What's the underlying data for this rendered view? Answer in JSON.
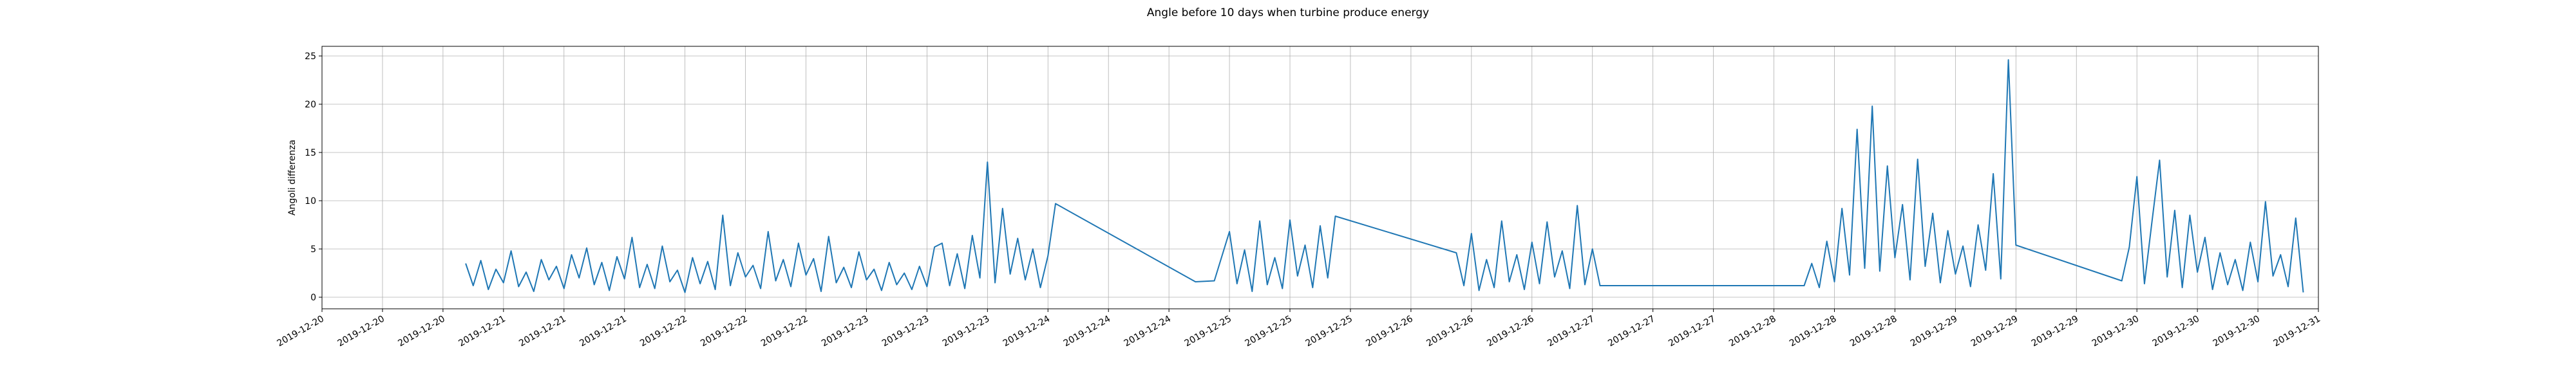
{
  "chart_data": {
    "type": "line",
    "title": "Angle before 10 days when turbine produce energy",
    "xlabel": "",
    "ylabel": "Angoli differenza",
    "x_tick_labels": [
      "2019-12-20",
      "2019-12-20",
      "2019-12-20",
      "2019-12-21",
      "2019-12-21",
      "2019-12-21",
      "2019-12-22",
      "2019-12-22",
      "2019-12-22",
      "2019-12-23",
      "2019-12-23",
      "2019-12-23",
      "2019-12-24",
      "2019-12-24",
      "2019-12-24",
      "2019-12-25",
      "2019-12-25",
      "2019-12-25",
      "2019-12-26",
      "2019-12-26",
      "2019-12-26",
      "2019-12-27",
      "2019-12-27",
      "2019-12-27",
      "2019-12-28",
      "2019-12-28",
      "2019-12-28",
      "2019-12-29",
      "2019-12-29",
      "2019-12-29",
      "2019-12-30",
      "2019-12-30",
      "2019-12-30",
      "2019-12-31"
    ],
    "xlim": [
      "2019-12-20T00:00",
      "2019-12-31T00:00"
    ],
    "y_ticks": [
      0,
      5,
      10,
      15,
      20,
      25
    ],
    "ylim": [
      -1.2,
      26.0
    ],
    "grid": true,
    "line_color": "#1f77b4",
    "series": [
      {
        "points": [
          [
            "2019-12-20T19:00",
            3.5
          ],
          [
            "2019-12-20T20:00",
            1.2
          ],
          [
            "2019-12-20T21:00",
            3.8
          ],
          [
            "2019-12-20T22:00",
            0.8
          ],
          [
            "2019-12-20T23:00",
            2.9
          ],
          [
            "2019-12-21T00:00",
            1.5
          ],
          [
            "2019-12-21T01:00",
            4.8
          ],
          [
            "2019-12-21T02:00",
            1.1
          ],
          [
            "2019-12-21T03:00",
            2.6
          ],
          [
            "2019-12-21T04:00",
            0.6
          ],
          [
            "2019-12-21T05:00",
            3.9
          ],
          [
            "2019-12-21T06:00",
            1.8
          ],
          [
            "2019-12-21T07:00",
            3.2
          ],
          [
            "2019-12-21T08:00",
            0.9
          ],
          [
            "2019-12-21T09:00",
            4.4
          ],
          [
            "2019-12-21T10:00",
            2.0
          ],
          [
            "2019-12-21T11:00",
            5.1
          ],
          [
            "2019-12-21T12:00",
            1.3
          ],
          [
            "2019-12-21T13:00",
            3.6
          ],
          [
            "2019-12-21T14:00",
            0.7
          ],
          [
            "2019-12-21T15:00",
            4.2
          ],
          [
            "2019-12-21T16:00",
            1.9
          ],
          [
            "2019-12-21T17:00",
            6.2
          ],
          [
            "2019-12-21T18:00",
            1.0
          ],
          [
            "2019-12-21T19:00",
            3.4
          ],
          [
            "2019-12-21T20:00",
            0.9
          ],
          [
            "2019-12-21T21:00",
            5.3
          ],
          [
            "2019-12-21T22:00",
            1.6
          ],
          [
            "2019-12-21T23:00",
            2.8
          ],
          [
            "2019-12-22T00:00",
            0.5
          ],
          [
            "2019-12-22T01:00",
            4.1
          ],
          [
            "2019-12-22T02:00",
            1.4
          ],
          [
            "2019-12-22T03:00",
            3.7
          ],
          [
            "2019-12-22T04:00",
            0.8
          ],
          [
            "2019-12-22T05:00",
            8.5
          ],
          [
            "2019-12-22T06:00",
            1.2
          ],
          [
            "2019-12-22T07:00",
            4.6
          ],
          [
            "2019-12-22T08:00",
            2.1
          ],
          [
            "2019-12-22T09:00",
            3.3
          ],
          [
            "2019-12-22T10:00",
            0.9
          ],
          [
            "2019-12-22T11:00",
            6.8
          ],
          [
            "2019-12-22T12:00",
            1.7
          ],
          [
            "2019-12-22T13:00",
            3.9
          ],
          [
            "2019-12-22T14:00",
            1.1
          ],
          [
            "2019-12-22T15:00",
            5.6
          ],
          [
            "2019-12-22T16:00",
            2.3
          ],
          [
            "2019-12-22T17:00",
            4.0
          ],
          [
            "2019-12-22T18:00",
            0.6
          ],
          [
            "2019-12-22T19:00",
            6.3
          ],
          [
            "2019-12-22T20:00",
            1.5
          ],
          [
            "2019-12-22T21:00",
            3.1
          ],
          [
            "2019-12-22T22:00",
            1.0
          ],
          [
            "2019-12-22T23:00",
            4.7
          ],
          [
            "2019-12-23T00:00",
            1.8
          ],
          [
            "2019-12-23T01:00",
            2.9
          ],
          [
            "2019-12-23T02:00",
            0.7
          ],
          [
            "2019-12-23T03:00",
            3.6
          ],
          [
            "2019-12-23T04:00",
            1.3
          ],
          [
            "2019-12-23T05:00",
            2.5
          ],
          [
            "2019-12-23T06:00",
            0.8
          ],
          [
            "2019-12-23T07:00",
            3.2
          ],
          [
            "2019-12-23T08:00",
            1.1
          ],
          [
            "2019-12-23T09:00",
            5.2
          ],
          [
            "2019-12-23T10:00",
            5.6
          ],
          [
            "2019-12-23T11:00",
            1.2
          ],
          [
            "2019-12-23T12:00",
            4.5
          ],
          [
            "2019-12-23T13:00",
            0.9
          ],
          [
            "2019-12-23T14:00",
            6.4
          ],
          [
            "2019-12-23T15:00",
            2.0
          ],
          [
            "2019-12-23T16:00",
            14.0
          ],
          [
            "2019-12-23T17:00",
            1.5
          ],
          [
            "2019-12-23T18:00",
            9.2
          ],
          [
            "2019-12-23T19:00",
            2.4
          ],
          [
            "2019-12-23T20:00",
            6.1
          ],
          [
            "2019-12-23T21:00",
            1.8
          ],
          [
            "2019-12-23T22:00",
            5.0
          ],
          [
            "2019-12-23T23:00",
            1.0
          ],
          [
            "2019-12-24T00:00",
            4.3
          ],
          [
            "2019-12-24T01:00",
            9.7
          ],
          [
            "2019-12-24T19:30",
            1.6
          ],
          [
            "2019-12-24T22:00",
            1.7
          ],
          [
            "2019-12-25T00:00",
            6.8
          ],
          [
            "2019-12-25T01:00",
            1.4
          ],
          [
            "2019-12-25T02:00",
            4.9
          ],
          [
            "2019-12-25T03:00",
            0.6
          ],
          [
            "2019-12-25T04:00",
            7.9
          ],
          [
            "2019-12-25T05:00",
            1.3
          ],
          [
            "2019-12-25T06:00",
            4.1
          ],
          [
            "2019-12-25T07:00",
            0.9
          ],
          [
            "2019-12-25T08:00",
            8.0
          ],
          [
            "2019-12-25T09:00",
            2.2
          ],
          [
            "2019-12-25T10:00",
            5.4
          ],
          [
            "2019-12-25T11:00",
            1.0
          ],
          [
            "2019-12-25T12:00",
            7.4
          ],
          [
            "2019-12-25T13:00",
            2.0
          ],
          [
            "2019-12-25T14:00",
            8.4
          ],
          [
            "2019-12-26T06:00",
            4.6
          ],
          [
            "2019-12-26T07:00",
            1.2
          ],
          [
            "2019-12-26T08:00",
            6.6
          ],
          [
            "2019-12-26T09:00",
            0.7
          ],
          [
            "2019-12-26T10:00",
            3.9
          ],
          [
            "2019-12-26T11:00",
            1.0
          ],
          [
            "2019-12-26T12:00",
            7.9
          ],
          [
            "2019-12-26T13:00",
            1.6
          ],
          [
            "2019-12-26T14:00",
            4.4
          ],
          [
            "2019-12-26T15:00",
            0.8
          ],
          [
            "2019-12-26T16:00",
            5.7
          ],
          [
            "2019-12-26T17:00",
            1.4
          ],
          [
            "2019-12-26T18:00",
            7.8
          ],
          [
            "2019-12-26T19:00",
            2.1
          ],
          [
            "2019-12-26T20:00",
            4.8
          ],
          [
            "2019-12-26T21:00",
            0.9
          ],
          [
            "2019-12-26T22:00",
            9.5
          ],
          [
            "2019-12-26T23:00",
            1.3
          ],
          [
            "2019-12-27T00:00",
            5.0
          ],
          [
            "2019-12-27T01:00",
            1.2
          ],
          [
            "2019-12-28T04:00",
            1.2
          ],
          [
            "2019-12-28T05:00",
            3.5
          ],
          [
            "2019-12-28T06:00",
            1.0
          ],
          [
            "2019-12-28T07:00",
            5.8
          ],
          [
            "2019-12-28T08:00",
            1.6
          ],
          [
            "2019-12-28T09:00",
            9.2
          ],
          [
            "2019-12-28T10:00",
            2.3
          ],
          [
            "2019-12-28T11:00",
            17.4
          ],
          [
            "2019-12-28T12:00",
            3.0
          ],
          [
            "2019-12-28T13:00",
            19.8
          ],
          [
            "2019-12-28T14:00",
            2.7
          ],
          [
            "2019-12-28T15:00",
            13.6
          ],
          [
            "2019-12-28T16:00",
            4.1
          ],
          [
            "2019-12-28T17:00",
            9.6
          ],
          [
            "2019-12-28T18:00",
            1.8
          ],
          [
            "2019-12-28T19:00",
            14.3
          ],
          [
            "2019-12-28T20:00",
            3.2
          ],
          [
            "2019-12-28T21:00",
            8.7
          ],
          [
            "2019-12-28T22:00",
            1.5
          ],
          [
            "2019-12-28T23:00",
            6.9
          ],
          [
            "2019-12-29T00:00",
            2.4
          ],
          [
            "2019-12-29T01:00",
            5.3
          ],
          [
            "2019-12-29T02:00",
            1.1
          ],
          [
            "2019-12-29T03:00",
            7.5
          ],
          [
            "2019-12-29T04:00",
            2.8
          ],
          [
            "2019-12-29T05:00",
            12.8
          ],
          [
            "2019-12-29T06:00",
            1.9
          ],
          [
            "2019-12-29T07:00",
            24.6
          ],
          [
            "2019-12-29T08:00",
            5.4
          ],
          [
            "2019-12-29T22:00",
            1.7
          ],
          [
            "2019-12-29T23:00",
            5.2
          ],
          [
            "2019-12-30T00:00",
            12.5
          ],
          [
            "2019-12-30T01:00",
            1.4
          ],
          [
            "2019-12-30T02:00",
            7.9
          ],
          [
            "2019-12-30T03:00",
            14.2
          ],
          [
            "2019-12-30T04:00",
            2.1
          ],
          [
            "2019-12-30T05:00",
            9.0
          ],
          [
            "2019-12-30T06:00",
            1.0
          ],
          [
            "2019-12-30T07:00",
            8.5
          ],
          [
            "2019-12-30T08:00",
            2.6
          ],
          [
            "2019-12-30T09:00",
            6.2
          ],
          [
            "2019-12-30T10:00",
            0.8
          ],
          [
            "2019-12-30T11:00",
            4.6
          ],
          [
            "2019-12-30T12:00",
            1.3
          ],
          [
            "2019-12-30T13:00",
            3.9
          ],
          [
            "2019-12-30T14:00",
            0.7
          ],
          [
            "2019-12-30T15:00",
            5.7
          ],
          [
            "2019-12-30T16:00",
            1.6
          ],
          [
            "2019-12-30T17:00",
            9.9
          ],
          [
            "2019-12-30T18:00",
            2.2
          ],
          [
            "2019-12-30T19:00",
            4.4
          ],
          [
            "2019-12-30T20:00",
            1.1
          ],
          [
            "2019-12-30T21:00",
            8.2
          ],
          [
            "2019-12-30T22:00",
            0.5
          ]
        ]
      }
    ]
  }
}
